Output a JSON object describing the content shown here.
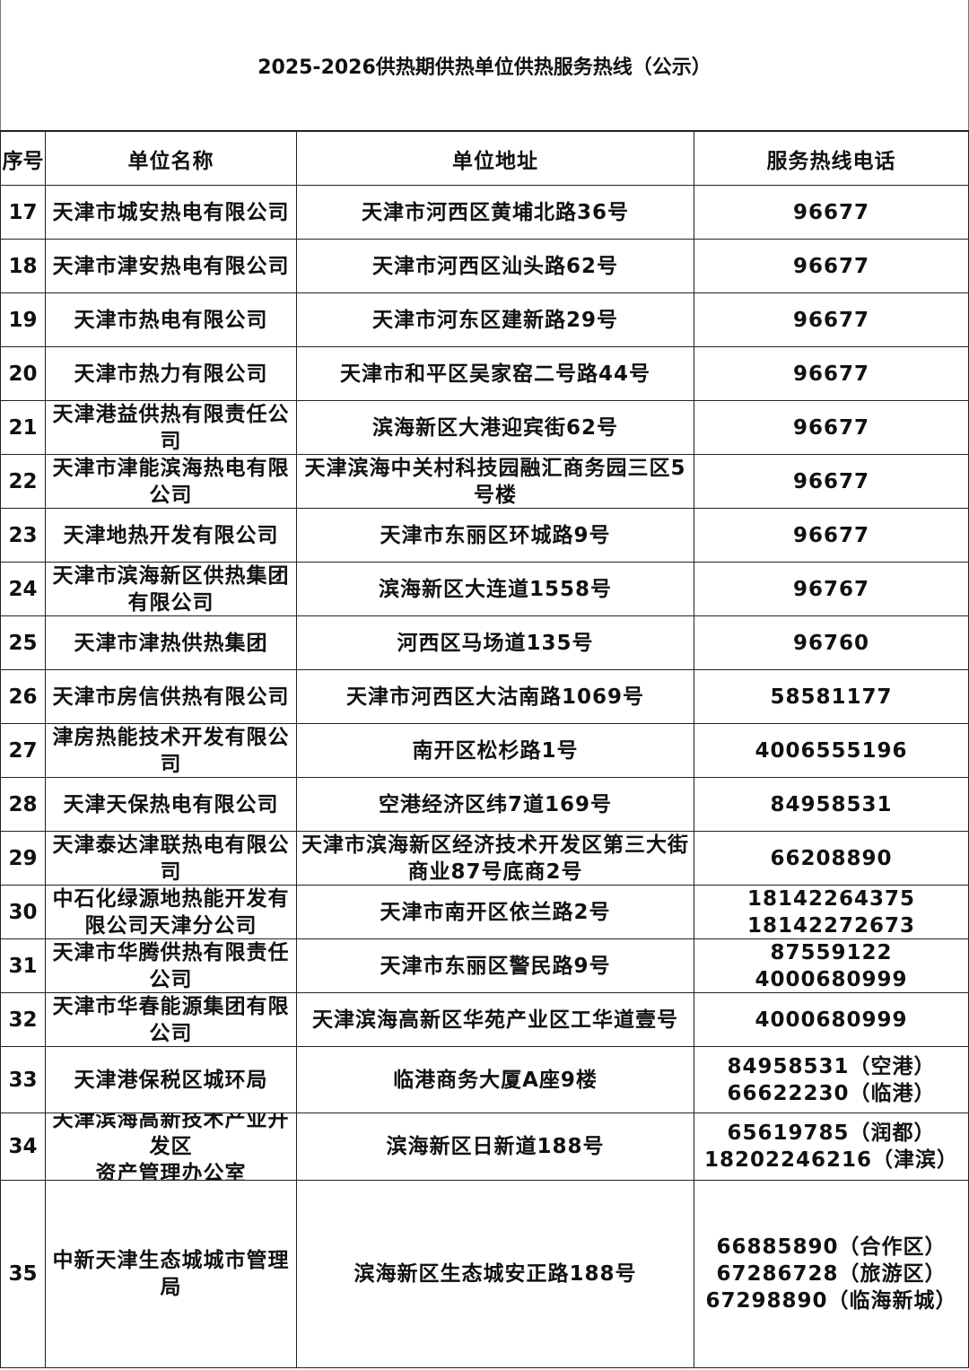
{
  "title": "2025-2026供热期供热单位供热服务热线（公示）",
  "headers": {
    "seq": "序号",
    "name": "单位名称",
    "address": "单位地址",
    "phone": "服务热线电话"
  },
  "rows": [
    {
      "seq": "17",
      "name": "天津市城安热电有限公司",
      "address": "天津市河西区黄埔北路36号",
      "phone": "96677"
    },
    {
      "seq": "18",
      "name": "天津市津安热电有限公司",
      "address": "天津市河西区汕头路62号",
      "phone": "96677"
    },
    {
      "seq": "19",
      "name": "天津市热电有限公司",
      "address": "天津市河东区建新路29号",
      "phone": "96677"
    },
    {
      "seq": "20",
      "name": "天津市热力有限公司",
      "address": "天津市和平区吴家窑二号路44号",
      "phone": "96677"
    },
    {
      "seq": "21",
      "name": "天津港益供热有限责任公司",
      "address": "滨海新区大港迎宾街62号",
      "phone": "96677"
    },
    {
      "seq": "22",
      "name": "天津市津能滨海热电有限公司",
      "address": "天津滨海中关村科技园融汇商务园三区5号楼",
      "phone": "96677"
    },
    {
      "seq": "23",
      "name": "天津地热开发有限公司",
      "address": "天津市东丽区环城路9号",
      "phone": "96677"
    },
    {
      "seq": "24",
      "name": "天津市滨海新区供热集团有限公司",
      "address": "滨海新区大连道1558号",
      "phone": "96767"
    },
    {
      "seq": "25",
      "name": "天津市津热供热集团",
      "address": "河西区马场道135号",
      "phone": "96760"
    },
    {
      "seq": "26",
      "name": "天津市房信供热有限公司",
      "address": "天津市河西区大沽南路1069号",
      "phone": "58581177"
    },
    {
      "seq": "27",
      "name": "津房热能技术开发有限公司",
      "address": "南开区松杉路1号",
      "phone": "4006555196"
    },
    {
      "seq": "28",
      "name": "天津天保热电有限公司",
      "address": "空港经济区纬7道169号",
      "phone": "84958531"
    },
    {
      "seq": "29",
      "name": "天津泰达津联热电有限公司",
      "address": "天津市滨海新区经济技术开发区第三大街商业87号底商2号",
      "phone": "66208890"
    },
    {
      "seq": "30",
      "name": "中石化绿源地热能开发有限公司天津分公司",
      "address": "天津市南开区依兰路2号",
      "phone": "18142264375\n18142272673"
    },
    {
      "seq": "31",
      "name": "天津市华腾供热有限责任公司",
      "address": "天津市东丽区警民路9号",
      "phone": "87559122\n4000680999"
    },
    {
      "seq": "32",
      "name": "天津市华春能源集团有限公司",
      "address": "天津滨海高新区华苑产业区工华道壹号",
      "phone": "4000680999"
    },
    {
      "seq": "33",
      "name": "天津港保税区城环局",
      "address": "临港商务大厦A座9楼",
      "phone": "84958531（空港）\n66622230（临港）"
    },
    {
      "seq": "34",
      "name": "天津滨海高新技术产业开发区\n资产管理办公室",
      "address": "滨海新区日新道188号",
      "phone": "65619785（润都）\n18202246216（津滨）"
    },
    {
      "seq": "35",
      "name": "中新天津生态城城市管理局",
      "address": "滨海新区生态城安正路188号",
      "phone": "66885890（合作区）\n67286728（旅游区）\n67298890（临海新城）"
    }
  ]
}
